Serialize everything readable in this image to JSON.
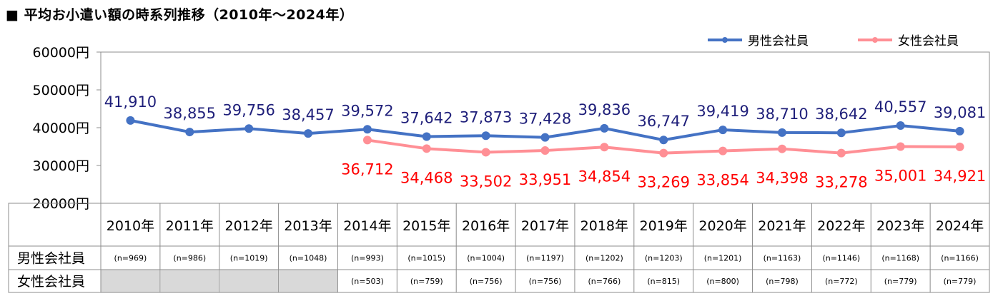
{
  "title": "■ 平均お小遣い額の時系列推移（2010年～2024年）",
  "legend": [
    "男性会社員",
    "女性会社員"
  ],
  "colors": {
    "male": "#4472C4",
    "female": "#FF8F95",
    "male_label": "#1F1F7A",
    "female_label": "#FF0000"
  },
  "y_ticks": [
    "60000円",
    "50000円",
    "40000円",
    "30000円",
    "20000円"
  ],
  "chart_data": {
    "type": "line",
    "categories": [
      "2010年",
      "2011年",
      "2012年",
      "2013年",
      "2014年",
      "2015年",
      "2016年",
      "2017年",
      "2018年",
      "2019年",
      "2020年",
      "2021年",
      "2022年",
      "2023年",
      "2024年"
    ],
    "ylim": [
      20000,
      60000
    ],
    "grid": false,
    "legend_position": "top-right",
    "series": [
      {
        "name": "男性会社員",
        "values": [
          41910,
          38855,
          39756,
          38457,
          39572,
          37642,
          37873,
          37428,
          39836,
          36747,
          39419,
          38710,
          38642,
          40557,
          39081
        ],
        "labels": [
          "41,910",
          "38,855",
          "39,756",
          "38,457",
          "39,572",
          "37,642",
          "37,873",
          "37,428",
          "39,836",
          "36,747",
          "39,419",
          "38,710",
          "38,642",
          "40,557",
          "39,081"
        ]
      },
      {
        "name": "女性会社員",
        "values": [
          null,
          null,
          null,
          null,
          36712,
          34468,
          33502,
          33951,
          34854,
          33269,
          33854,
          34398,
          33278,
          35001,
          34921
        ],
        "labels": [
          null,
          null,
          null,
          null,
          "36,712",
          "34,468",
          "33,502",
          "33,951",
          "34,854",
          "33,269",
          "33,854",
          "34,398",
          "33,278",
          "35,001",
          "34,921"
        ]
      }
    ]
  },
  "table": {
    "rows": [
      {
        "label": "男性会社員",
        "cells": [
          "(n=969)",
          "(n=986)",
          "(n=1019)",
          "(n=1048)",
          "(n=993)",
          "(n=1015)",
          "(n=1004)",
          "(n=1197)",
          "(n=1202)",
          "(n=1203)",
          "(n=1201)",
          "(n=1163)",
          "(n=1146)",
          "(n=1168)",
          "(n=1166)"
        ]
      },
      {
        "label": "女性会社員",
        "cells": [
          null,
          null,
          null,
          null,
          "(n=503)",
          "(n=759)",
          "(n=756)",
          "(n=756)",
          "(n=766)",
          "(n=815)",
          "(n=800)",
          "(n=798)",
          "(n=772)",
          "(n=779)",
          "(n=779)"
        ]
      }
    ]
  }
}
